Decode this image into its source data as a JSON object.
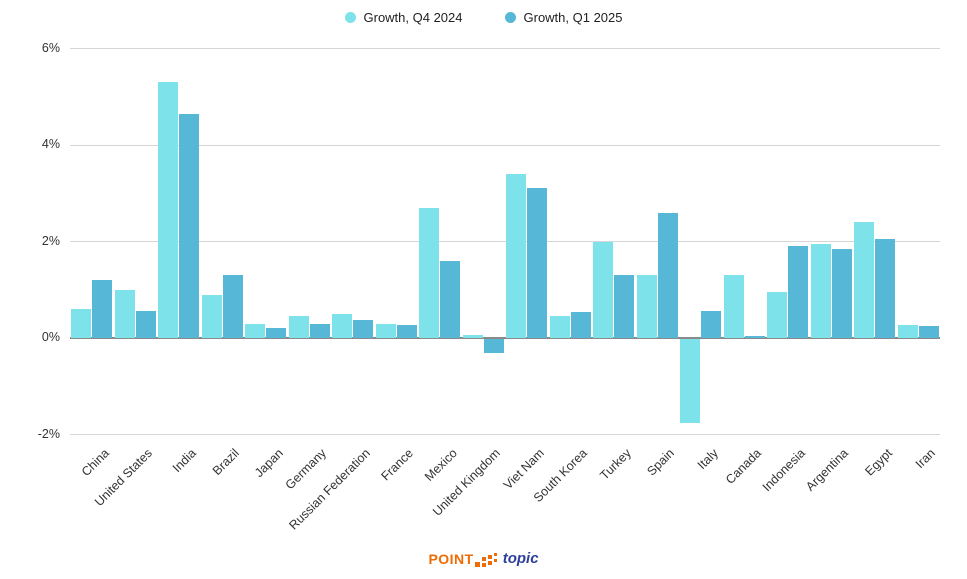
{
  "chart_data": {
    "type": "bar",
    "title": "",
    "categories": [
      "China",
      "United States",
      "India",
      "Brazil",
      "Japan",
      "Germany",
      "Russian Federation",
      "France",
      "Mexico",
      "United Kingdom",
      "Viet Nam",
      "South Korea",
      "Turkey",
      "Spain",
      "Italy",
      "Canada",
      "Indonesia",
      "Argentina",
      "Egypt",
      "Iran"
    ],
    "series": [
      {
        "name": "Growth, Q4 2024",
        "color": "#7de2ea",
        "values": [
          0.6,
          1.0,
          5.3,
          0.9,
          0.3,
          0.45,
          0.5,
          0.28,
          2.7,
          0.06,
          3.4,
          0.45,
          2.0,
          1.3,
          -1.75,
          1.3,
          0.95,
          1.95,
          2.4,
          0.27
        ]
      },
      {
        "name": "Growth, Q1 2025",
        "color": "#57b7d6",
        "values": [
          1.2,
          0.55,
          4.65,
          1.3,
          0.2,
          0.28,
          0.37,
          0.27,
          1.6,
          -0.3,
          3.1,
          0.53,
          1.3,
          2.6,
          0.55,
          0.05,
          1.9,
          1.85,
          2.05,
          0.25
        ]
      }
    ],
    "ylim": [
      -2,
      6
    ],
    "yticks": [
      6,
      4,
      2,
      0,
      -2
    ],
    "ytick_suffix": "%",
    "grid": "horizontal",
    "legend_position": "top",
    "xlabel": "",
    "ylabel": ""
  },
  "footer": {
    "logo_point": "POINT",
    "logo_topic": "topic",
    "logo_orange": "#ed6c05",
    "logo_blue": "#2e3f9c"
  }
}
